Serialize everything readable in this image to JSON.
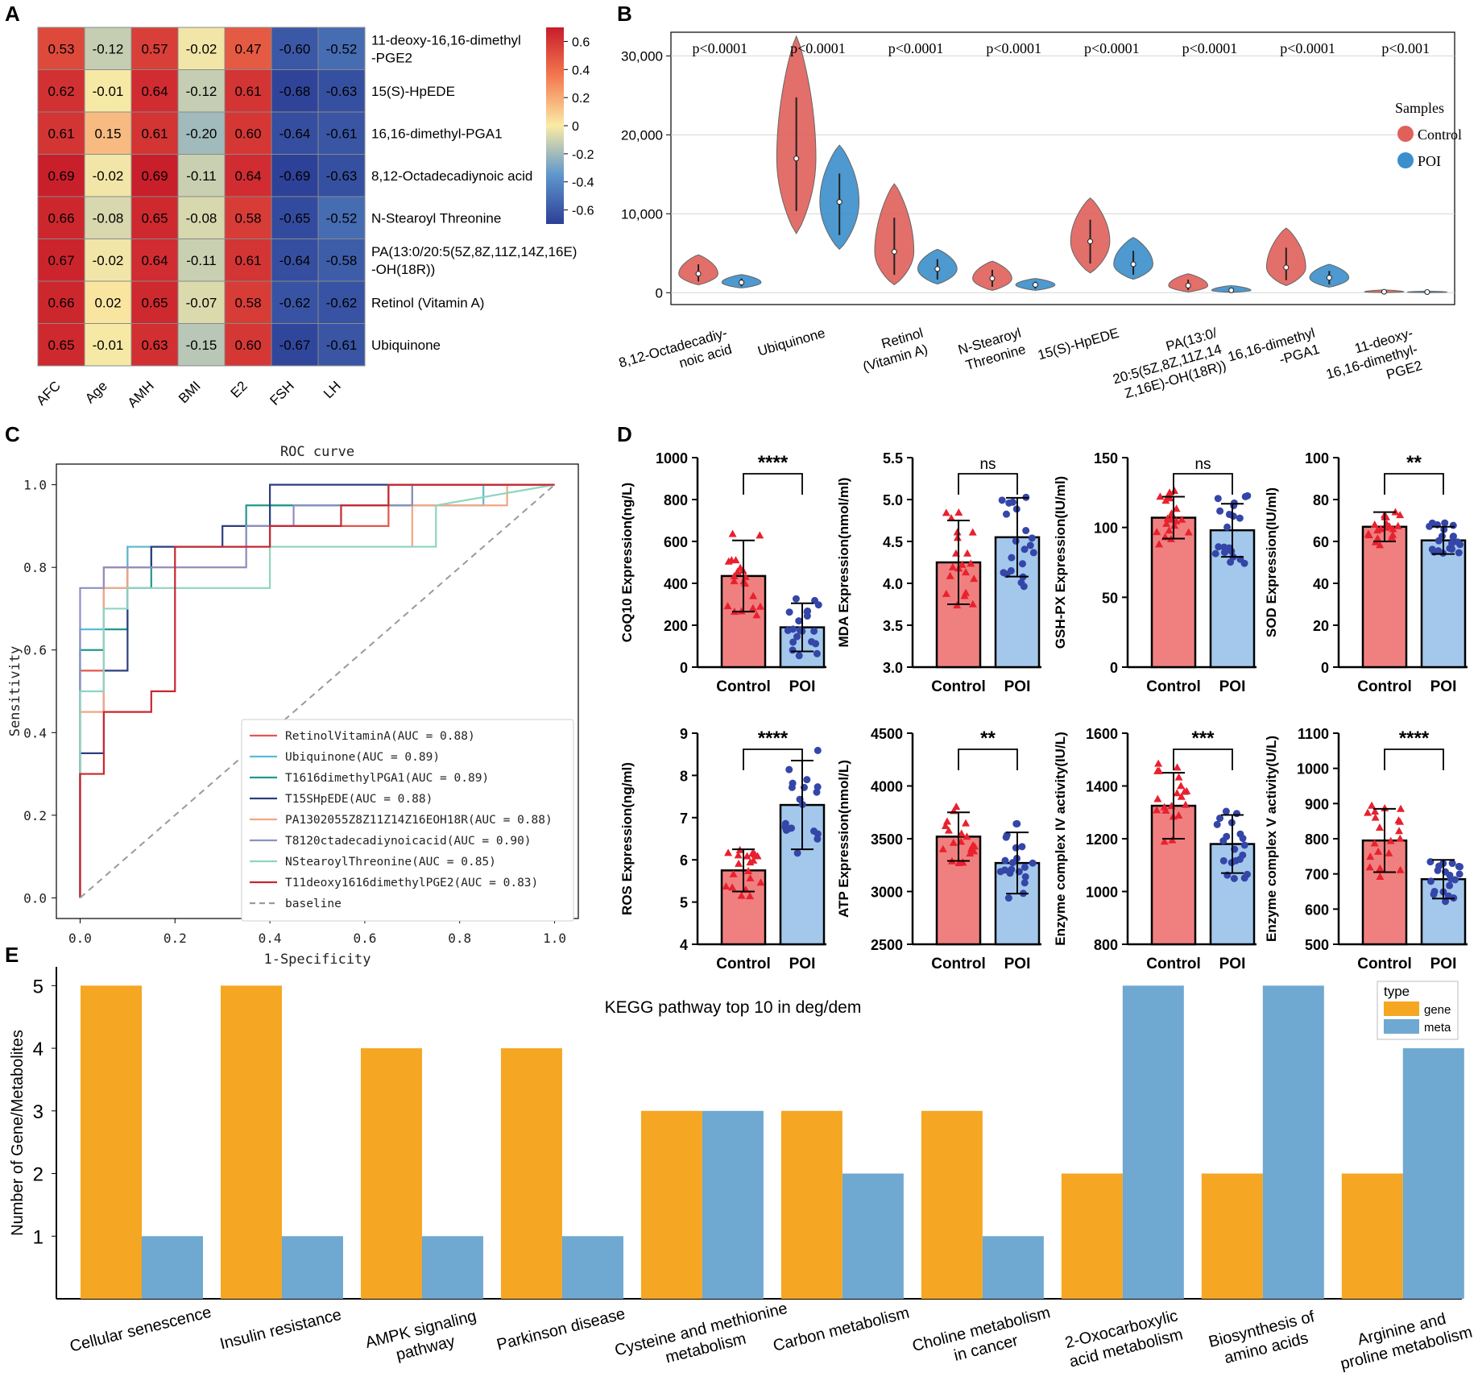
{
  "panel_labels": {
    "a": "A",
    "b": "B",
    "c": "C",
    "d": "D",
    "e": "E"
  },
  "colors": {
    "control": "#e0605a",
    "poi": "#3a8fcc",
    "bar_control": "#f08080",
    "bar_poi": "#a4c8ec",
    "pt_control": "#e8212e",
    "pt_poi": "#3446a8",
    "gene": "#f5a623",
    "meta": "#6fa8d0"
  },
  "chart_data": [
    {
      "id": "A",
      "type": "heatmap",
      "columns": [
        "AFC",
        "Age",
        "AMH",
        "BMI",
        "E2",
        "FSH",
        "LH"
      ],
      "rows": [
        {
          "label": [
            "11-deoxy-16,16-dimethyl",
            "-PGE2"
          ],
          "values": [
            0.53,
            -0.12,
            0.57,
            -0.02,
            0.47,
            -0.6,
            -0.52
          ]
        },
        {
          "label": [
            "15(S)-HpEDE"
          ],
          "values": [
            0.62,
            -0.01,
            0.64,
            -0.12,
            0.61,
            -0.68,
            -0.63
          ]
        },
        {
          "label": [
            "16,16-dimethyl-PGA1"
          ],
          "values": [
            0.61,
            0.15,
            0.61,
            -0.2,
            0.6,
            -0.64,
            -0.61
          ]
        },
        {
          "label": [
            "8,12-Octadecadiynoic acid"
          ],
          "values": [
            0.69,
            -0.02,
            0.69,
            -0.11,
            0.64,
            -0.69,
            -0.63
          ]
        },
        {
          "label": [
            "N-Stearoyl Threonine"
          ],
          "values": [
            0.66,
            -0.08,
            0.65,
            -0.08,
            0.58,
            -0.65,
            -0.52
          ]
        },
        {
          "label": [
            "PA(13:0/20:5(5Z,8Z,11Z,14Z,16E)",
            "-OH(18R))"
          ],
          "values": [
            0.67,
            -0.02,
            0.64,
            -0.11,
            0.61,
            -0.64,
            -0.58
          ]
        },
        {
          "label": [
            "Retinol (Vitamin A)"
          ],
          "values": [
            0.66,
            0.02,
            0.65,
            -0.07,
            0.58,
            -0.62,
            -0.62
          ]
        },
        {
          "label": [
            "Ubiquinone"
          ],
          "values": [
            0.65,
            -0.01,
            0.63,
            -0.15,
            0.6,
            -0.67,
            -0.61
          ]
        }
      ],
      "display_values": [
        [
          "0.53",
          "-0.12",
          "0.57",
          "-0.02",
          "0.47",
          "-0.60",
          "-0.52"
        ],
        [
          "0.62",
          "-0.01",
          "0.64",
          "-0.12",
          "0.61",
          "-0.68",
          "-0.63"
        ],
        [
          "0.61",
          "0.15",
          "0.61",
          "-0.20",
          "0.60",
          "-0.64",
          "-0.61"
        ],
        [
          "0.69",
          "-0.02",
          "0.69",
          "-0.11",
          "0.64",
          "-0.69",
          "-0.63"
        ],
        [
          "0.66",
          "-0.08",
          "0.65",
          "-0.08",
          "0.58",
          "-0.65",
          "-0.52"
        ],
        [
          "0.67",
          "-0.02",
          "0.64",
          "-0.11",
          "0.61",
          "-0.64",
          "-0.58"
        ],
        [
          "0.66",
          "0.02",
          "0.65",
          "-0.07",
          "0.58",
          "-0.62",
          "-0.62"
        ],
        [
          "0.65",
          "-0.01",
          "0.63",
          "-0.15",
          "0.60",
          "-0.67",
          "-0.61"
        ]
      ],
      "colorbar": {
        "range": [
          -0.7,
          0.7
        ],
        "ticks": [
          0.6,
          0.4,
          0.2,
          0,
          -0.2,
          -0.4,
          -0.6
        ],
        "tick_labels": [
          "0.6",
          "0.4",
          "0.2",
          "0",
          "-0.2",
          "-0.4",
          "-0.6"
        ]
      }
    },
    {
      "id": "B",
      "type": "violin",
      "ylim": [
        -1500,
        33000
      ],
      "yticks": [
        0,
        10000,
        20000,
        30000
      ],
      "ytick_labels": [
        "0",
        "10,000",
        "20,000",
        "30,000"
      ],
      "categories": [
        [
          "8,12-Octadecadiy-",
          "noic acid"
        ],
        [
          "Ubiquinone"
        ],
        [
          "Retinol",
          "(Vitamin A)"
        ],
        [
          "N-Stearoyl",
          "Threonine"
        ],
        [
          "15(S)-HpEDE"
        ],
        [
          "PA(13:0/",
          "20:5(5Z,8Z,11Z,14",
          "Z,16E)-OH(18R))"
        ],
        [
          "16,16-dimethyl",
          "-PGA1"
        ],
        [
          "11-deoxy-",
          "16,16-dimethyl-",
          "PGE2"
        ]
      ],
      "pvalues": [
        "p<0.0001",
        "p<0.0001",
        "p<0.0001",
        "p<0.0001",
        "p<0.0001",
        "p<0.0001",
        "p<0.0001",
        "p<0.001"
      ],
      "legend_title": "Samples",
      "legend": [
        "Control",
        "POI"
      ],
      "series": [
        {
          "name": "Control",
          "median": [
            2400,
            17000,
            5200,
            1800,
            6500,
            900,
            3200,
            120
          ],
          "min": [
            1000,
            7500,
            1000,
            300,
            2500,
            100,
            900,
            20
          ],
          "max": [
            4800,
            32500,
            13800,
            4000,
            12000,
            2400,
            8200,
            350
          ]
        },
        {
          "name": "POI",
          "median": [
            1300,
            11500,
            3000,
            1000,
            3600,
            300,
            1900,
            80
          ],
          "min": [
            600,
            5500,
            1100,
            300,
            1700,
            50,
            700,
            10
          ],
          "max": [
            2300,
            18700,
            5500,
            1800,
            7000,
            900,
            3600,
            200
          ]
        }
      ]
    },
    {
      "id": "C",
      "type": "line",
      "title": "ROC curve",
      "xlabel": "1-Specificity",
      "ylabel": "Sensitivity",
      "xlim": [
        -0.05,
        1.05
      ],
      "ylim": [
        -0.05,
        1.05
      ],
      "ticks": [
        "0.0",
        "0.2",
        "0.4",
        "0.6",
        "0.8",
        "1.0"
      ],
      "series": [
        {
          "name": "RetinolVitaminA(AUC = 0.88)",
          "color": "#e2574c",
          "x": [
            0,
            0,
            0.05,
            0.05,
            0.1,
            0.1,
            0.2,
            0.2,
            0.4,
            0.4,
            0.65,
            0.65,
            1
          ],
          "y": [
            0,
            0.55,
            0.55,
            0.8,
            0.8,
            0.85,
            0.85,
            0.85,
            0.85,
            0.9,
            0.9,
            1,
            1
          ]
        },
        {
          "name": "Ubiquinone(AUC = 0.89)",
          "color": "#5bbcd6",
          "x": [
            0,
            0,
            0.05,
            0.05,
            0.1,
            0.1,
            0.35,
            0.35,
            0.4,
            0.4,
            0.85,
            0.85,
            1
          ],
          "y": [
            0,
            0.65,
            0.65,
            0.75,
            0.75,
            0.85,
            0.85,
            0.85,
            0.85,
            0.95,
            0.95,
            1,
            1
          ]
        },
        {
          "name": "T1616dimethylPGA1(AUC = 0.89)",
          "color": "#1f9a8a",
          "x": [
            0,
            0,
            0.05,
            0.05,
            0.1,
            0.1,
            0.15,
            0.15,
            0.35,
            0.35,
            0.7,
            0.7,
            1
          ],
          "y": [
            0,
            0.6,
            0.6,
            0.65,
            0.65,
            0.75,
            0.75,
            0.85,
            0.85,
            0.95,
            0.95,
            1,
            1
          ]
        },
        {
          "name": "T15SHpEDE(AUC = 0.88)",
          "color": "#2c3e80",
          "x": [
            0,
            0,
            0.05,
            0.05,
            0.1,
            0.1,
            0.15,
            0.15,
            0.3,
            0.3,
            0.4,
            0.4,
            1
          ],
          "y": [
            0,
            0.35,
            0.35,
            0.55,
            0.55,
            0.8,
            0.8,
            0.85,
            0.85,
            0.9,
            0.9,
            1,
            1
          ]
        },
        {
          "name": "PA1302055Z8Z11Z14Z16EOH18R(AUC = 0.88)",
          "color": "#f4a582",
          "x": [
            0,
            0,
            0.05,
            0.05,
            0.1,
            0.1,
            0.35,
            0.35,
            0.7,
            0.7,
            0.9,
            0.9,
            1
          ],
          "y": [
            0,
            0.45,
            0.45,
            0.75,
            0.75,
            0.8,
            0.8,
            0.85,
            0.85,
            0.95,
            0.95,
            1,
            1
          ]
        },
        {
          "name": "T8120ctadecadiynoicacid(AUC = 0.90)",
          "color": "#8e8fc2",
          "x": [
            0,
            0,
            0.05,
            0.05,
            0.35,
            0.35,
            0.45,
            0.45,
            0.7,
            0.7,
            1
          ],
          "y": [
            0,
            0.75,
            0.75,
            0.8,
            0.8,
            0.9,
            0.9,
            0.95,
            0.95,
            1,
            1
          ]
        },
        {
          "name": "NStearoylThreonine(AUC = 0.85)",
          "color": "#8fd4c1",
          "x": [
            0,
            0,
            0.05,
            0.05,
            0.1,
            0.1,
            0.4,
            0.4,
            0.75,
            0.75,
            1
          ],
          "y": [
            0,
            0.5,
            0.5,
            0.7,
            0.7,
            0.75,
            0.75,
            0.85,
            0.85,
            0.95,
            1
          ]
        },
        {
          "name": "T11deoxy1616dimethylPGE2(AUC = 0.83)",
          "color": "#c9272f",
          "x": [
            0,
            0,
            0.05,
            0.05,
            0.15,
            0.15,
            0.2,
            0.2,
            0.4,
            0.4,
            0.55,
            0.55,
            0.65,
            0.65,
            1
          ],
          "y": [
            0,
            0.3,
            0.3,
            0.45,
            0.45,
            0.5,
            0.5,
            0.85,
            0.85,
            0.9,
            0.9,
            0.95,
            0.95,
            1,
            1
          ]
        },
        {
          "name": "baseline",
          "color": "#9a9a9a",
          "dashed": true,
          "x": [
            0,
            1
          ],
          "y": [
            0,
            1
          ]
        }
      ]
    },
    {
      "id": "D",
      "type": "bar",
      "groups": [
        "Control",
        "POI"
      ],
      "panels": [
        {
          "ylabel": "CoQ10 Expression(ng/L)",
          "ylim": [
            0,
            1000
          ],
          "ticks": [
            "0",
            "200",
            "400",
            "600",
            "800",
            "1000"
          ],
          "means": [
            435,
            190
          ],
          "sd": [
            170,
            115
          ],
          "sig": "****"
        },
        {
          "ylabel": "MDA Expression(nmol/ml)",
          "ylim": [
            3.0,
            5.5
          ],
          "ticks": [
            "3.0",
            "3.5",
            "4.0",
            "4.5",
            "5.0",
            "5.5"
          ],
          "means": [
            4.25,
            4.55
          ],
          "sd": [
            0.5,
            0.47
          ],
          "sig": "ns"
        },
        {
          "ylabel": "GSH-PX Expression(IU/ml)",
          "ylim": [
            0,
            150
          ],
          "ticks": [
            "0",
            "50",
            "100",
            "150"
          ],
          "means": [
            107,
            98
          ],
          "sd": [
            15,
            19
          ],
          "sig": "ns"
        },
        {
          "ylabel": "SOD Expression(IU/ml)",
          "ylim": [
            0,
            100
          ],
          "ticks": [
            "0",
            "20",
            "40",
            "60",
            "80",
            "100"
          ],
          "means": [
            67,
            60.5
          ],
          "sd": [
            7,
            6.5
          ],
          "sig": "**"
        },
        {
          "ylabel": "ROS Expression(ng/ml)",
          "ylim": [
            4,
            9
          ],
          "ticks": [
            "4",
            "5",
            "6",
            "7",
            "8",
            "9"
          ],
          "means": [
            5.75,
            7.3
          ],
          "sd": [
            0.5,
            1.05
          ],
          "sig": "****"
        },
        {
          "ylabel": "ATP Expression(nmol/L)",
          "ylim": [
            2500,
            4500
          ],
          "ticks": [
            "2500",
            "3000",
            "3500",
            "4000",
            "4500"
          ],
          "means": [
            3520,
            3270
          ],
          "sd": [
            230,
            290
          ],
          "sig": "**"
        },
        {
          "ylabel": "Enzyme complex IV activity(IU/L)",
          "ylim": [
            800,
            1600
          ],
          "ticks": [
            "800",
            "1000",
            "1200",
            "1400",
            "1600"
          ],
          "means": [
            1325,
            1180
          ],
          "sd": [
            125,
            110
          ],
          "sig": "***"
        },
        {
          "ylabel": "Enzyme complex V activity(U/L)",
          "ylim": [
            500,
            1100
          ],
          "ticks": [
            "500",
            "600",
            "700",
            "800",
            "900",
            "1000",
            "1100"
          ],
          "means": [
            795,
            685
          ],
          "sd": [
            90,
            55
          ],
          "sig": "****"
        }
      ]
    },
    {
      "id": "E",
      "type": "bar",
      "title": "KEGG pathway top 10 in deg/dem",
      "ylabel": "Number of Gene/Metabolites",
      "ylim": [
        0,
        5.3
      ],
      "yticks": [
        "1",
        "2",
        "3",
        "4",
        "5"
      ],
      "legend_title": "type",
      "legend": [
        "gene",
        "meta"
      ],
      "categories": [
        [
          "Cellular senescence"
        ],
        [
          "Insulin resistance"
        ],
        [
          "AMPK signaling",
          "pathway"
        ],
        [
          "Parkinson disease"
        ],
        [
          "Cysteine and methionine",
          "metabolism"
        ],
        [
          "Carbon metabolism"
        ],
        [
          "Choline metabolism",
          "in cancer"
        ],
        [
          "2-Oxocarboxylic",
          "acid metabolism"
        ],
        [
          "Biosynthesis of",
          "amino acids"
        ],
        [
          "Arginine and",
          "proline metabolism"
        ]
      ],
      "series": [
        {
          "name": "gene",
          "values": [
            5,
            5,
            4,
            4,
            3,
            3,
            3,
            2,
            2,
            2
          ]
        },
        {
          "name": "meta",
          "values": [
            1,
            1,
            1,
            1,
            3,
            2,
            1,
            5,
            5,
            4
          ]
        }
      ]
    }
  ]
}
